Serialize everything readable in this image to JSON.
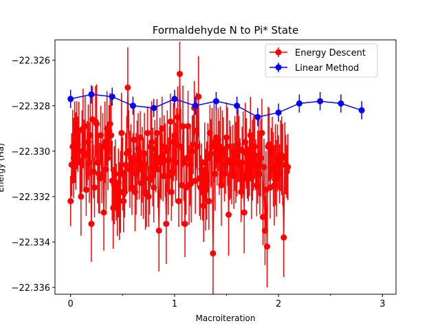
{
  "chart_data": {
    "type": "line",
    "title": "Formaldehyde N to Pi* State",
    "xlabel": "Macroiteration",
    "ylabel": "Energy (Ha)",
    "xlim": [
      -0.15,
      3.13
    ],
    "ylim": [
      -22.3363,
      -22.3251
    ],
    "x_ticks": [
      0,
      1,
      2,
      3
    ],
    "x_tick_labels": [
      "0",
      "1",
      "2",
      "3"
    ],
    "y_ticks": [
      -22.326,
      -22.328,
      -22.33,
      -22.332,
      -22.334,
      -22.336
    ],
    "y_tick_labels": [
      "−22.326",
      "−22.328",
      "−22.330",
      "−22.332",
      "−22.334",
      "−22.336"
    ],
    "legend_position": "top-right",
    "legend": [
      "Energy Descent",
      "Linear Method"
    ],
    "colors": {
      "energy_descent": "#ff0000",
      "linear_method": "#0000ff"
    },
    "series": [
      {
        "name": "Energy Descent",
        "x_start": 0,
        "x_step": 0.01,
        "values": [
          -22.3322,
          -22.3306,
          -22.3298,
          -22.3303,
          -22.3296,
          -22.33,
          -22.3293,
          -22.3297,
          -22.3291,
          -22.3305,
          -22.332,
          -22.33,
          -22.329,
          -22.3302,
          -22.3289,
          -22.3317,
          -22.3301,
          -22.3296,
          -22.3305,
          -22.3293,
          -22.3332,
          -22.3286,
          -22.3309,
          -22.3316,
          -22.3287,
          -22.3288,
          -22.3305,
          -22.331,
          -22.3312,
          -22.3293,
          -22.3311,
          -22.3298,
          -22.3327,
          -22.3296,
          -22.3308,
          -22.329,
          -22.3303,
          -22.3291,
          -22.3288,
          -22.3293,
          -22.3313,
          -22.3325,
          -22.3315,
          -22.331,
          -22.3318,
          -22.3325,
          -22.3314,
          -22.3322,
          -22.3318,
          -22.3292,
          -22.331,
          -22.3322,
          -22.3318,
          -22.3306,
          -22.3301,
          -22.3272,
          -22.33,
          -22.3308,
          -22.3303,
          -22.3316,
          -22.3305,
          -22.3295,
          -22.3318,
          -22.331,
          -22.3304,
          -22.3299,
          -22.3308,
          -22.3294,
          -22.3314,
          -22.3306,
          -22.3312,
          -22.3301,
          -22.3318,
          -22.3319,
          -22.3292,
          -22.332,
          -22.3312,
          -22.3298,
          -22.3296,
          -22.3307,
          -22.3316,
          -22.3299,
          -22.3306,
          -22.3292,
          -22.3308,
          -22.3335,
          -22.3303,
          -22.3305,
          -22.329,
          -22.3311,
          -22.3298,
          -22.3304,
          -22.3332,
          -22.33,
          -22.3311,
          -22.3304,
          -22.3287,
          -22.3318,
          -22.3309,
          -22.3296,
          -22.3293,
          -22.3305,
          -22.3297,
          -22.3285,
          -22.3322,
          -22.3266,
          -22.3298,
          -22.3315,
          -22.3289,
          -22.3305,
          -22.3332,
          -22.3316,
          -22.3303,
          -22.3289,
          -22.3315,
          -22.3306,
          -22.3314,
          -22.33,
          -22.3297,
          -22.3281,
          -22.3313,
          -22.3291,
          -22.3298,
          -22.3276,
          -22.3312,
          -22.3316,
          -22.3308,
          -22.3317,
          -22.3324,
          -22.3305,
          -22.3317,
          -22.3313,
          -22.3303,
          -22.3322,
          -22.3292,
          -22.3301,
          -22.3298,
          -22.3345,
          -22.3296,
          -22.331,
          -22.3294,
          -22.3304,
          -22.3295,
          -22.3303,
          -22.3298,
          -22.3315,
          -22.3299,
          -22.33,
          -22.331,
          -22.3306,
          -22.3294,
          -22.3298,
          -22.3328,
          -22.3304,
          -22.3305,
          -22.331,
          -22.33,
          -22.3311,
          -22.3301,
          -22.3305,
          -22.3302,
          -22.3297,
          -22.3299,
          -22.3306,
          -22.3318,
          -22.3305,
          -22.33,
          -22.3327,
          -22.3296,
          -22.3301,
          -22.3308,
          -22.331,
          -22.3305,
          -22.3293,
          -22.3312,
          -22.3304,
          -22.3301,
          -22.3298,
          -22.3306,
          -22.3315,
          -22.3307,
          -22.3302,
          -22.331,
          -22.3303,
          -22.3292,
          -22.3329,
          -22.3307,
          -22.3335,
          -22.3317,
          -22.3342,
          -22.3298,
          -22.3297,
          -22.3316,
          -22.3301,
          -22.3299,
          -22.3308,
          -22.3315,
          -22.3306,
          -22.3312,
          -22.3303,
          -22.3305,
          -22.331,
          -22.3302,
          -22.3302,
          -22.3306,
          -22.3338,
          -22.3303,
          -22.3306,
          -22.3309,
          -22.3307
        ]
      },
      {
        "name": "Linear Method",
        "x": [
          0.0,
          0.2,
          0.4,
          0.6,
          0.8,
          1.0,
          1.2,
          1.4,
          1.6,
          1.8,
          2.0,
          2.2,
          2.4,
          2.6,
          2.8
        ],
        "values": [
          -22.3277,
          -22.3275,
          -22.3276,
          -22.328,
          -22.3281,
          -22.3277,
          -22.328,
          -22.3278,
          -22.328,
          -22.3285,
          -22.3283,
          -22.3279,
          -22.3278,
          -22.3279,
          -22.3282
        ]
      }
    ]
  }
}
